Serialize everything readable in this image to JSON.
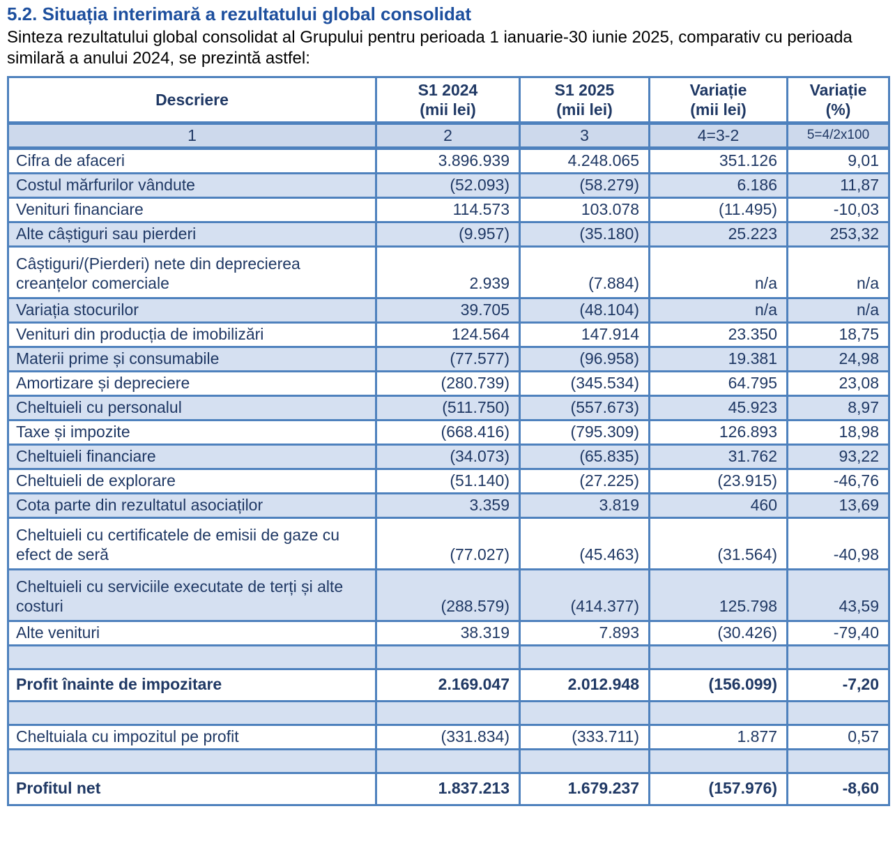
{
  "title": "5.2. Situația interimară a rezultatului global consolidat",
  "intro": "Sinteza rezultatului global consolidat al Grupului pentru perioada 1 ianuarie-30 iunie 2025, comparativ cu perioada similară a anului 2024, se prezintă astfel:",
  "colors": {
    "title_blue": "#1d4f9e",
    "table_text_navy": "#1f3864",
    "border_blue": "#4e81bd",
    "shaded_row": "#d5e0f1",
    "subheader_bg": "#cdd9ec"
  },
  "table": {
    "headers": [
      {
        "line1": "Descriere",
        "line2": ""
      },
      {
        "line1": "S1 2024",
        "line2": "(mii lei)"
      },
      {
        "line1": "S1 2025",
        "line2": "(mii lei)"
      },
      {
        "line1": "Variație",
        "line2": "(mii lei)"
      },
      {
        "line1": "Variație",
        "line2": "(%)"
      }
    ],
    "col_numbers": [
      "1",
      "2",
      "3",
      "4=3-2",
      "5=4/2x100"
    ],
    "rows": [
      {
        "desc": "Cifra de afaceri",
        "v2024": "3.896.939",
        "v2025": "4.248.065",
        "var_lei": "351.126",
        "var_pct": "9,01"
      },
      {
        "desc": "Costul mărfurilor vândute",
        "v2024": "(52.093)",
        "v2025": "(58.279)",
        "var_lei": "6.186",
        "var_pct": "11,87"
      },
      {
        "desc": "Venituri financiare",
        "v2024": "114.573",
        "v2025": "103.078",
        "var_lei": "(11.495)",
        "var_pct": "-10,03"
      },
      {
        "desc": "Alte câștiguri sau pierderi",
        "v2024": "(9.957)",
        "v2025": "(35.180)",
        "var_lei": "25.223",
        "var_pct": "253,32"
      },
      {
        "desc": "Câștiguri/(Pierderi) nete din deprecierea creanțelor comerciale",
        "v2024": "2.939",
        "v2025": "(7.884)",
        "var_lei": "n/a",
        "var_pct": "n/a",
        "two_line": true
      },
      {
        "desc": "Variația stocurilor",
        "v2024": "39.705",
        "v2025": "(48.104)",
        "var_lei": "n/a",
        "var_pct": "n/a"
      },
      {
        "desc": "Venituri din producția de imobilizări",
        "v2024": "124.564",
        "v2025": "147.914",
        "var_lei": "23.350",
        "var_pct": "18,75"
      },
      {
        "desc": "Materii prime și consumabile",
        "v2024": "(77.577)",
        "v2025": "(96.958)",
        "var_lei": "19.381",
        "var_pct": "24,98"
      },
      {
        "desc": "Amortizare și depreciere",
        "v2024": "(280.739)",
        "v2025": "(345.534)",
        "var_lei": "64.795",
        "var_pct": "23,08"
      },
      {
        "desc": "Cheltuieli cu personalul",
        "v2024": "(511.750)",
        "v2025": "(557.673)",
        "var_lei": "45.923",
        "var_pct": "8,97"
      },
      {
        "desc": "Taxe și impozite",
        "v2024": "(668.416)",
        "v2025": "(795.309)",
        "var_lei": "126.893",
        "var_pct": "18,98"
      },
      {
        "desc": "Cheltuieli financiare",
        "v2024": "(34.073)",
        "v2025": "(65.835)",
        "var_lei": "31.762",
        "var_pct": "93,22"
      },
      {
        "desc": "Cheltuieli de explorare",
        "v2024": "(51.140)",
        "v2025": "(27.225)",
        "var_lei": "(23.915)",
        "var_pct": "-46,76"
      },
      {
        "desc": "Cota parte din rezultatul asociaților",
        "v2024": "3.359",
        "v2025": "3.819",
        "var_lei": "460",
        "var_pct": "13,69"
      },
      {
        "desc": "Cheltuieli cu certificatele de emisii de gaze cu efect de seră",
        "v2024": "(77.027)",
        "v2025": "(45.463)",
        "var_lei": "(31.564)",
        "var_pct": "-40,98",
        "two_line": true
      },
      {
        "desc": "Cheltuieli cu serviciile executate de terți și alte costuri",
        "v2024": "(288.579)",
        "v2025": "(414.377)",
        "var_lei": "125.798",
        "var_pct": "43,59",
        "two_line": true
      },
      {
        "desc": "Alte venituri",
        "v2024": "38.319",
        "v2025": "7.893",
        "var_lei": "(30.426)",
        "var_pct": "-79,40"
      },
      {
        "desc": "",
        "v2024": "",
        "v2025": "",
        "var_lei": "",
        "var_pct": "",
        "blank": true
      },
      {
        "desc": "Profit înainte de impozitare",
        "v2024": "2.169.047",
        "v2025": "2.012.948",
        "var_lei": "(156.099)",
        "var_pct": "-7,20",
        "emphasis": true
      },
      {
        "desc": "",
        "v2024": "",
        "v2025": "",
        "var_lei": "",
        "var_pct": "",
        "blank": true
      },
      {
        "desc": "Cheltuiala cu impozitul pe profit",
        "v2024": "(331.834)",
        "v2025": "(333.711)",
        "var_lei": "1.877",
        "var_pct": "0,57"
      },
      {
        "desc": "",
        "v2024": "",
        "v2025": "",
        "var_lei": "",
        "var_pct": "",
        "blank": true
      },
      {
        "desc": "Profitul net",
        "v2024": "1.837.213",
        "v2025": "1.679.237",
        "var_lei": "(157.976)",
        "var_pct": "-8,60",
        "emphasis": true
      }
    ]
  }
}
